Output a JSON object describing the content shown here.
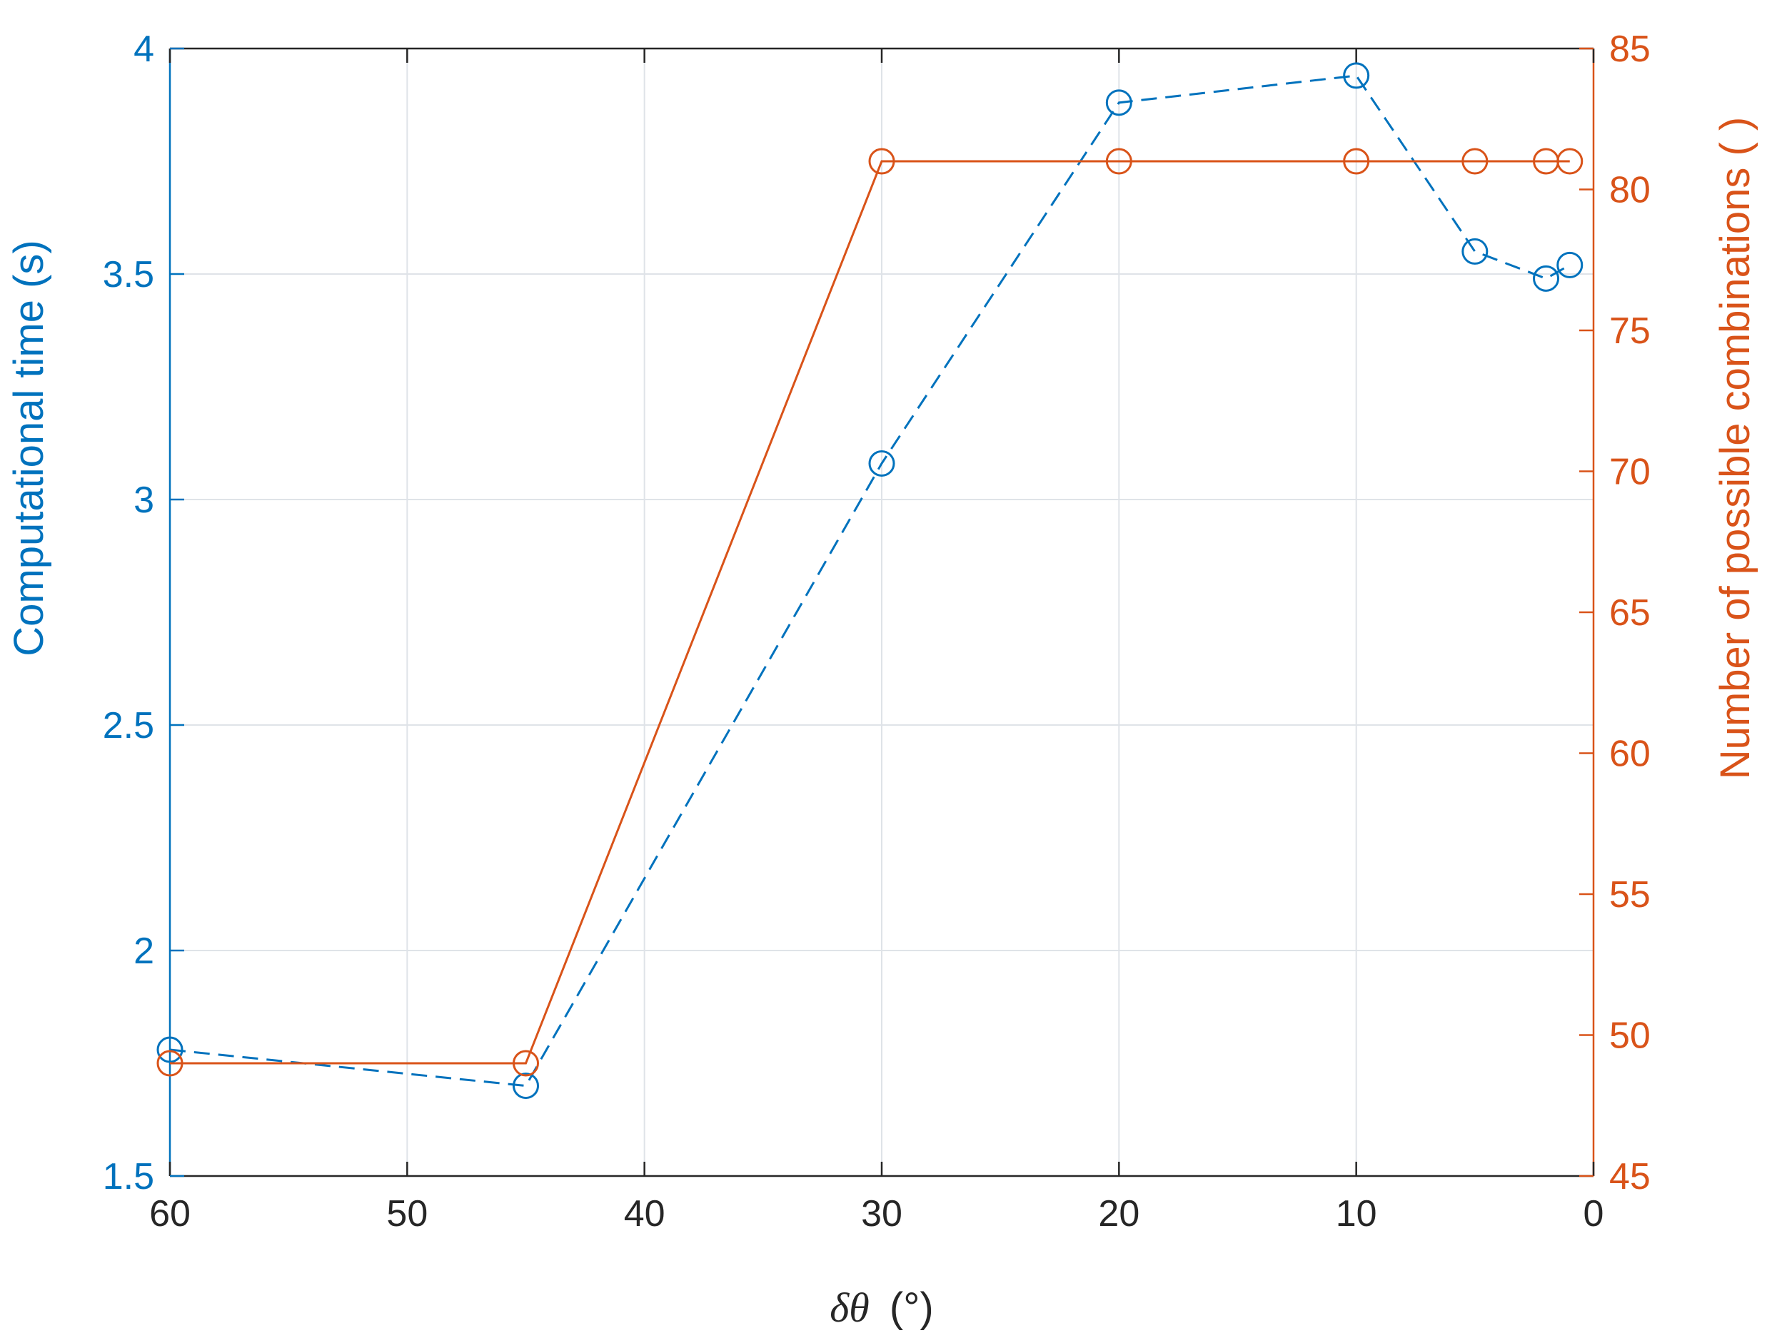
{
  "colors": {
    "left_axis": "#0072BD",
    "right_axis": "#D95319",
    "time_series": "#0072BD",
    "combinations_series": "#D95319",
    "grid": "#DFE3E8",
    "axis": "#262626"
  },
  "chart_data": {
    "type": "line",
    "title": "",
    "xlabel": {
      "symbol": "δθ",
      "unit": "(°)"
    },
    "ylabel_left": "Computational time (s)",
    "ylabel_right": "Number of possible combinations ( )",
    "xlim": [
      60,
      0
    ],
    "ylim_left": [
      1.5,
      4
    ],
    "ylim_right": [
      45,
      85
    ],
    "x_reversed": true,
    "grid": true,
    "legend": "none",
    "x_ticks": [
      60,
      50,
      40,
      30,
      20,
      10,
      0
    ],
    "x_tick_labels": [
      "60",
      "50",
      "40",
      "30",
      "20",
      "10",
      "0"
    ],
    "y_left_ticks": [
      1.5,
      2,
      2.5,
      3,
      3.5,
      4
    ],
    "y_left_tick_labels": [
      "1.5",
      "2",
      "2.5",
      "3",
      "3.5",
      "4"
    ],
    "y_right_ticks": [
      45,
      50,
      55,
      60,
      65,
      70,
      75,
      80,
      85
    ],
    "y_right_tick_labels": [
      "45",
      "50",
      "55",
      "60",
      "65",
      "70",
      "75",
      "80",
      "85"
    ],
    "series": [
      {
        "axis": "left",
        "line_style": "dashed",
        "marker": "circle",
        "x": [
          60,
          45,
          30,
          20,
          10,
          5,
          2,
          1
        ],
        "y": [
          1.78,
          1.7,
          3.08,
          3.88,
          3.94,
          3.55,
          3.49,
          3.52
        ]
      },
      {
        "axis": "right",
        "line_style": "solid",
        "marker": "circle",
        "x": [
          60,
          45,
          30,
          20,
          10,
          5,
          2,
          1
        ],
        "y": [
          49,
          49,
          81,
          81,
          81,
          81,
          81,
          81
        ]
      }
    ]
  }
}
